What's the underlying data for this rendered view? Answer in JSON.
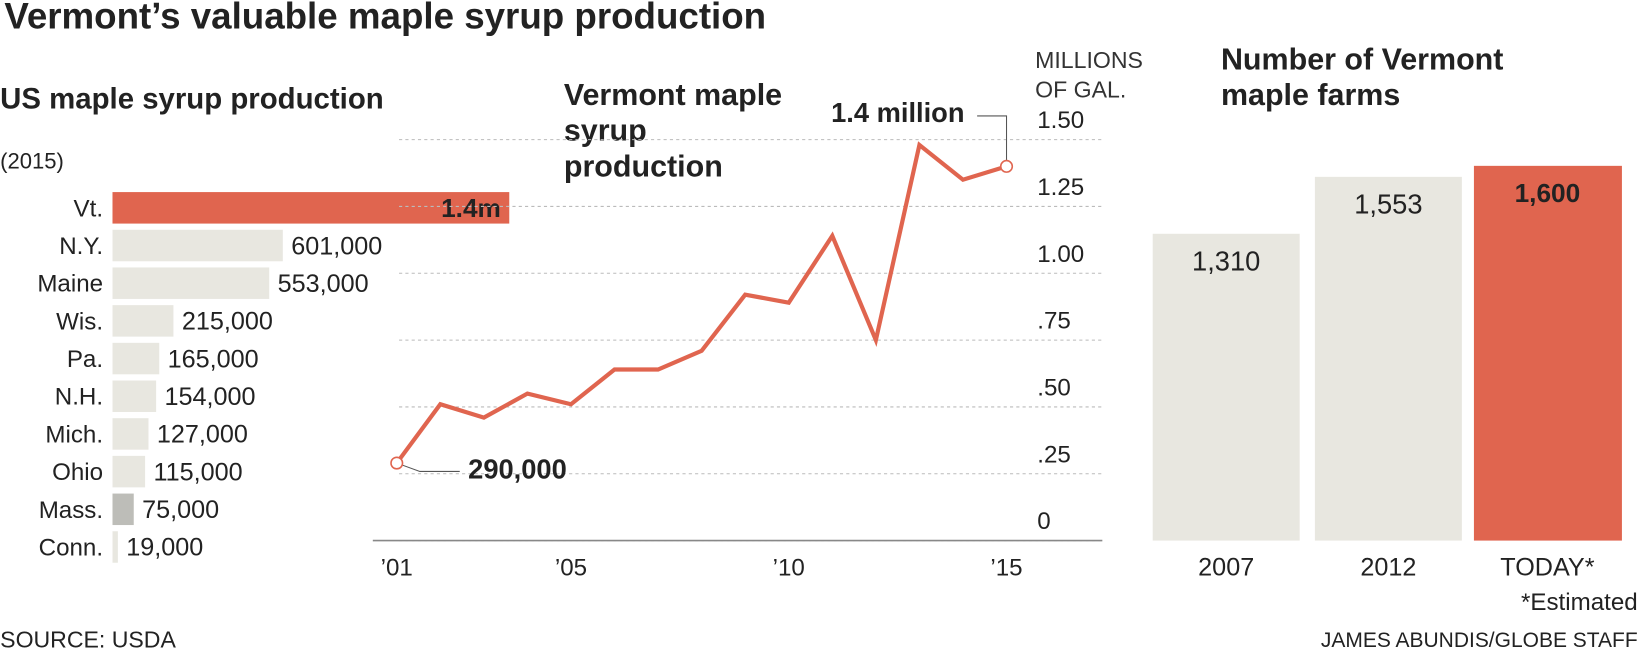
{
  "title": "Vermont’s valuable maple syrup production",
  "source": "SOURCE: USDA",
  "credit": "JAMES ABUNDIS/GLOBE STAFF",
  "chart_data": [
    {
      "type": "bar",
      "orientation": "horizontal",
      "title": "US maple syrup production",
      "subtitle": "(2015)",
      "categories": [
        "Vt.",
        "N.Y.",
        "Maine",
        "Wis.",
        "Pa.",
        "N.H.",
        "Mich.",
        "Ohio",
        "Mass.",
        "Conn."
      ],
      "values": [
        1400000,
        601000,
        553000,
        215000,
        165000,
        154000,
        127000,
        115000,
        75000,
        19000
      ],
      "value_labels": [
        "1.4m",
        "601,000",
        "553,000",
        "215,000",
        "165,000",
        "154,000",
        "127,000",
        "115,000",
        "75,000",
        "19,000"
      ],
      "colors": [
        "#e0654f",
        "#e8e7e0",
        "#e8e7e0",
        "#e8e7e0",
        "#e8e7e0",
        "#e8e7e0",
        "#e8e7e0",
        "#e8e7e0",
        "#bdbdb8",
        "#e8e7e0"
      ],
      "xlim": [
        0,
        1400000
      ]
    },
    {
      "type": "line",
      "title": "Vermont maple syrup production",
      "y_label": "MILLIONS OF GAL.",
      "x": [
        2001,
        2002,
        2003,
        2004,
        2005,
        2006,
        2007,
        2008,
        2009,
        2010,
        2011,
        2012,
        2013,
        2014,
        2015
      ],
      "series": [
        {
          "color": "#e0654f",
          "values": [
            0.29,
            0.51,
            0.46,
            0.55,
            0.51,
            0.64,
            0.64,
            0.71,
            0.92,
            0.89,
            1.14,
            0.75,
            1.48,
            1.35,
            1.4
          ]
        }
      ],
      "xlim": [
        2000.45,
        2017.2
      ],
      "xticks": [
        {
          "value": 2001,
          "label": "’01"
        },
        {
          "value": 2005,
          "label": "’05"
        },
        {
          "value": 2010,
          "label": "’10"
        },
        {
          "value": 2015,
          "label": "’15"
        }
      ],
      "ylim": [
        0,
        1.5
      ],
      "yticks": [
        0,
        {
          "value": 0.25,
          "label": ".25"
        },
        {
          "value": 0.5,
          "label": ".50"
        },
        {
          "value": 0.75,
          "label": ".75"
        },
        {
          "value": 1,
          "label": "1.00"
        },
        1.25,
        {
          "value": 1.5,
          "label": "1.50"
        }
      ],
      "grid": true,
      "annotations": [
        {
          "text": "290,000",
          "x": 2001,
          "y": 0.29
        },
        {
          "text": "1.4 million",
          "x": 2015,
          "y": 1.4
        }
      ]
    },
    {
      "type": "bar",
      "orientation": "vertical",
      "title": "Number of Vermont maple farms",
      "categories": [
        "2007",
        "2012",
        "TODAY*"
      ],
      "values": [
        1310,
        1553,
        1600
      ],
      "value_labels": [
        "1,310",
        "1,553",
        "1,600"
      ],
      "colors": [
        "#e8e7e0",
        "#e8e7e0",
        "#e0654f"
      ],
      "ylim": [
        0,
        1600
      ],
      "note": "*Estimated"
    }
  ]
}
